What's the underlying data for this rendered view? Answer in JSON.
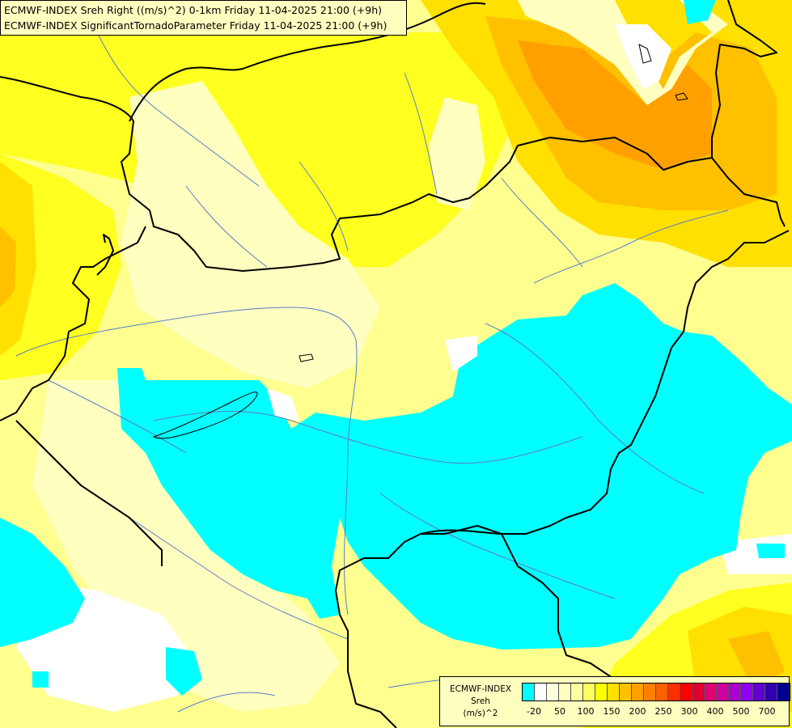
{
  "title_lines": [
    "ECMWF-INDEX Sreh Right ((m/s)^2) 0-1km Friday 11-04-2025 21:00 (+9h)",
    "ECMWF-INDEX SignificantTornadoParameter Friday 11-04-2025 21:00 (+9h)"
  ],
  "legend": {
    "title_lines": [
      "ECMWF-INDEX",
      "Sreh",
      "(m/s)^2"
    ],
    "colors": [
      "#00ffff",
      "#ffffff",
      "#ffffe0",
      "#ffffc0",
      "#ffffa0",
      "#ffff60",
      "#ffff00",
      "#ffe000",
      "#ffc000",
      "#ffa000",
      "#ff8000",
      "#ff6000",
      "#ff3000",
      "#ff0000",
      "#e00030",
      "#e00070",
      "#d000a0",
      "#b000d0",
      "#9000f0",
      "#6000d0",
      "#3000b0",
      "#000090"
    ],
    "ticks": [
      "-20",
      "50",
      "100",
      "150",
      "200",
      "250",
      "300",
      "400",
      "500",
      "700"
    ]
  },
  "field_colors": {
    "negative": "#00ffff",
    "near_zero": "#ffffff",
    "pale": "#ffffc0",
    "light": "#ffff90",
    "yellow": "#ffff20",
    "gold": "#ffe000",
    "orange": "#ffc000",
    "dark_orange": "#ffa000"
  }
}
